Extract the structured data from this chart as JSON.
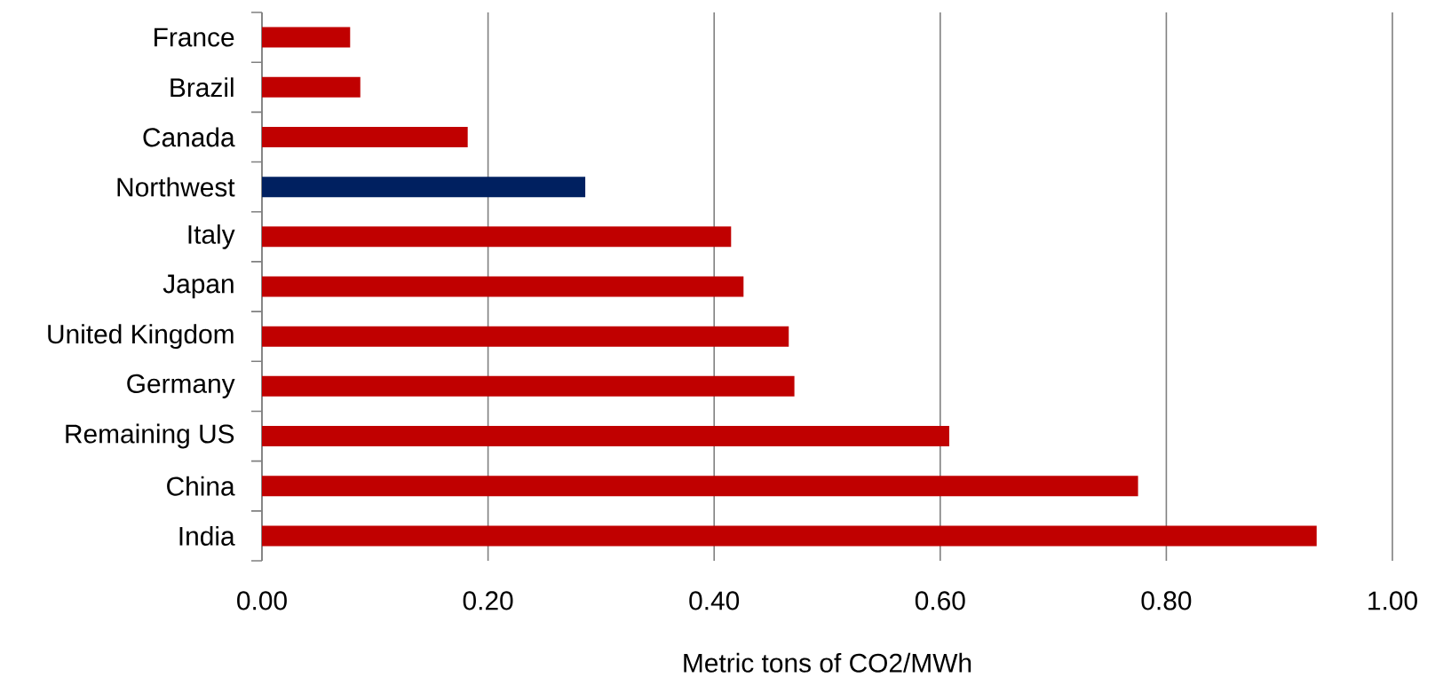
{
  "chart_data": {
    "type": "bar",
    "orientation": "horizontal",
    "xlabel": "Metric tons of CO2/MWh",
    "categories": [
      "France",
      "Brazil",
      "Canada",
      "Northwest",
      "Italy",
      "Japan",
      "United Kingdom",
      "Germany",
      "Remaining US",
      "China",
      "India"
    ],
    "values": [
      0.078,
      0.087,
      0.182,
      0.286,
      0.415,
      0.426,
      0.466,
      0.471,
      0.608,
      0.775,
      0.933
    ],
    "colors": [
      "#c00000",
      "#c00000",
      "#c00000",
      "#002060",
      "#c00000",
      "#c00000",
      "#c00000",
      "#c00000",
      "#c00000",
      "#c00000",
      "#c00000"
    ],
    "xlim": [
      0,
      1
    ],
    "xticks": [
      {
        "value": 0,
        "label": "0.00"
      },
      {
        "value": 0.2,
        "label": "0.20"
      },
      {
        "value": 0.4,
        "label": "0.40"
      },
      {
        "value": 0.6,
        "label": "0.60"
      },
      {
        "value": 0.8,
        "label": "0.80"
      },
      {
        "value": 1,
        "label": "1.00"
      }
    ],
    "grid": "x"
  }
}
